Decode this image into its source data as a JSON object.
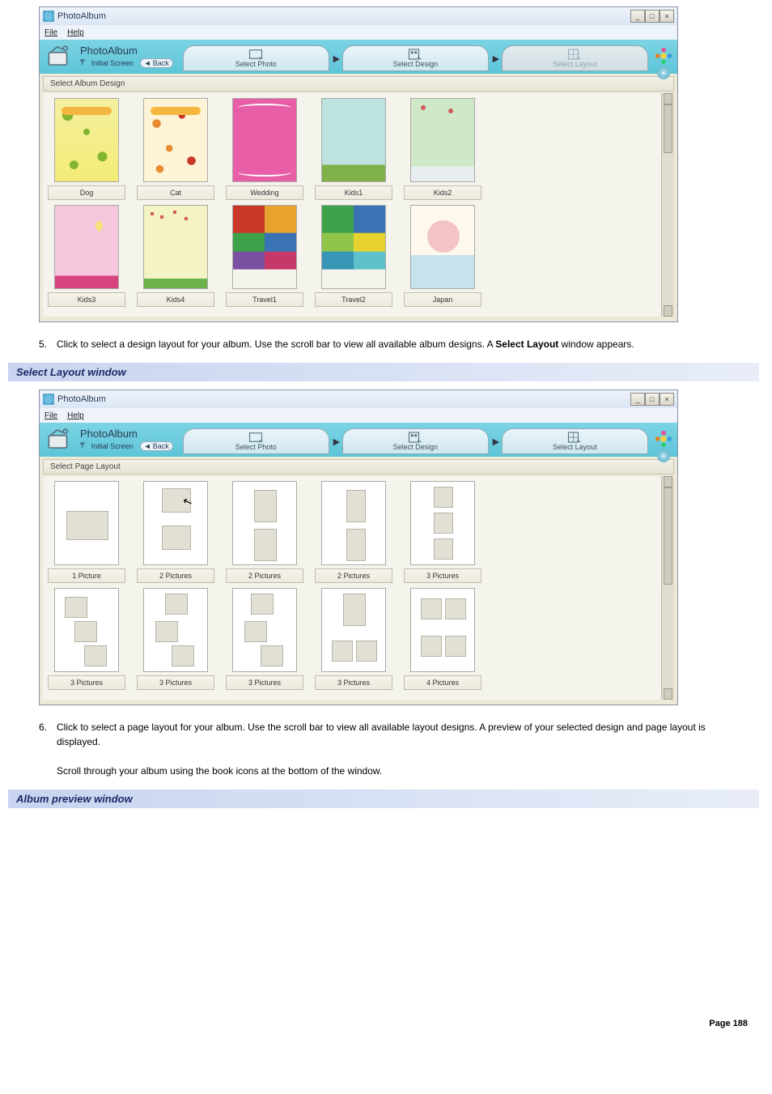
{
  "page": {
    "footer": "Page 188"
  },
  "steps": {
    "five": {
      "num": "5.",
      "text_a": "Click to select a design layout for your album. Use the scroll bar to view all available album designs. A ",
      "bold": "Select Layout",
      "text_b": " window appears."
    },
    "six": {
      "num": "6.",
      "text_a": "Click to select a page layout for your album. Use the scroll bar to view all available layout designs. A preview of your selected design and page layout is displayed.",
      "text_b": "Scroll through your album using the book icons at the bottom of the window."
    }
  },
  "headings": {
    "select_layout": "Select Layout window",
    "album_preview": "Album preview window"
  },
  "app": {
    "title": "PhotoAlbum",
    "menu": {
      "file": "File",
      "help": "Help"
    },
    "logo": "PhotoAlbum",
    "sublinks": {
      "initial": "Initial Screen",
      "back": "Back"
    },
    "steps": {
      "photo": "Select Photo",
      "design": "Select Design",
      "layout": "Select Layout"
    }
  },
  "window1": {
    "section": "Select Album Design",
    "row1": [
      {
        "label": "Dog",
        "cls": "d-dog"
      },
      {
        "label": "Cat",
        "cls": "d-cat"
      },
      {
        "label": "Wedding",
        "cls": "d-wedding"
      },
      {
        "label": "Kids1",
        "cls": "d-kids1"
      },
      {
        "label": "Kids2",
        "cls": "d-kids2"
      }
    ],
    "row2": [
      {
        "label": "Kids3",
        "cls": "d-kids3"
      },
      {
        "label": "Kids4",
        "cls": "d-kids4"
      },
      {
        "label": "Travel1",
        "cls": "d-travel1"
      },
      {
        "label": "Travel2",
        "cls": "d-travel2"
      },
      {
        "label": "Japan",
        "cls": "d-japan"
      }
    ]
  },
  "window2": {
    "section": "Select Page Layout",
    "row1": [
      "1 Picture",
      "2 Pictures",
      "2 Pictures",
      "2 Pictures",
      "3 Pictures"
    ],
    "row2": [
      "3 Pictures",
      "3 Pictures",
      "3 Pictures",
      "3 Pictures",
      "4 Pictures"
    ]
  },
  "colors": {
    "heading_bg_start": "#c8d4f0",
    "heading_bg_end": "#e8edf8",
    "heading_text": "#1a2a66",
    "titlebar_start": "#eef3fb",
    "titlebar_end": "#dbe6f4",
    "header_band_start": "#7bd4e4",
    "header_band_end": "#5dc5d8",
    "grid_bg": "#f5f4ec",
    "placeholder_fill": "#e2e0d5",
    "placeholder_border": "#b7b4a6"
  }
}
